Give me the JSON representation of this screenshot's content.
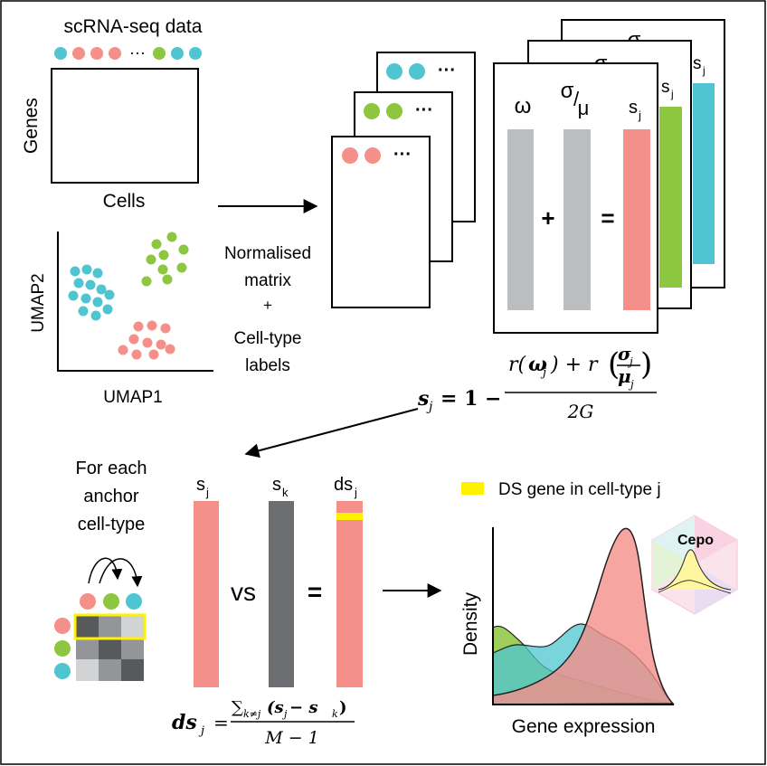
{
  "colors": {
    "teal": "#4ec5d0",
    "salmon": "#f58f89",
    "green": "#8dc63f",
    "gray": "#bcbdbf",
    "darkgray": "#6d6e71",
    "yellow": "#fff200"
  },
  "top_left": {
    "title": "scRNA-seq data",
    "ellipsis": "···",
    "genes_label": "Genes",
    "cells_label": "Cells",
    "umap_x": "UMAP1",
    "umap_y": "UMAP2"
  },
  "arrow_label": {
    "line1": "Normalised",
    "line2": "matrix",
    "line3": "+",
    "line4": "Cell-type",
    "line5": "labels"
  },
  "stack": {
    "ellipsis": "···",
    "omega": "ω",
    "sigma": "σ",
    "slash": "/",
    "mu": "μ",
    "s": "s",
    "j": "j",
    "plus": "+",
    "equals": "="
  },
  "formula1": {
    "lhs_bold_s": "s",
    "lhs_sub": "j",
    "eq_one_minus": "= 1 −",
    "num_r1": "r(",
    "num_omega": "ω",
    "num_omega_sub": "j",
    "num_close_plus_r": ") + r",
    "frac_sigma": "σ",
    "frac_sigma_sub": "j",
    "frac_mu": "μ",
    "frac_mu_sub": "j",
    "den": "2G"
  },
  "bottom_left": {
    "anchor_line1": "For each",
    "anchor_line2": "anchor",
    "anchor_line3": "cell-type",
    "col_sj": "s",
    "col_sj_sub": "j",
    "col_sk": "s",
    "col_sk_sub": "k",
    "col_dsj": "ds",
    "col_dsj_sub": "j",
    "vs": "vs",
    "equals": "="
  },
  "formula2": {
    "lhs": "ds",
    "lhs_sub": "j",
    "eq": "=",
    "num": "∑",
    "num_sub": "k≠j",
    "num_body": "(s",
    "num_body_sub1": "j",
    "num_minus": " − s",
    "num_body_sub2": "k",
    "num_close": ")",
    "den": "M − 1"
  },
  "density": {
    "legend": "DS gene in cell-type j",
    "ylabel": "Density",
    "xlabel": "Gene expression",
    "logo": "Cepo"
  }
}
